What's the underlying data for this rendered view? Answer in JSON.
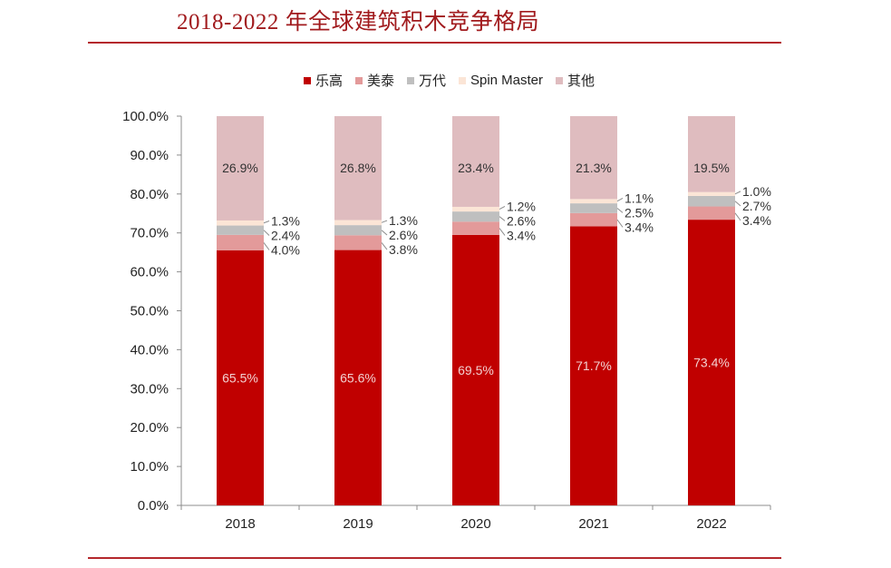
{
  "header": {
    "title": "2018-2022 年全球建筑积木竞争格局"
  },
  "chart_data": {
    "type": "bar",
    "stacked": true,
    "percent": true,
    "title": "2018-2022 年全球建筑积木竞争格局",
    "xlabel": "",
    "ylabel": "",
    "categories": [
      "2018",
      "2019",
      "2020",
      "2021",
      "2022"
    ],
    "ylim": [
      0,
      100
    ],
    "yticks": [
      0,
      10,
      20,
      30,
      40,
      50,
      60,
      70,
      80,
      90,
      100
    ],
    "ytick_labels": [
      "0.0%",
      "10.0%",
      "20.0%",
      "30.0%",
      "40.0%",
      "50.0%",
      "60.0%",
      "70.0%",
      "80.0%",
      "90.0%",
      "100.0%"
    ],
    "legend_position": "top-center",
    "grid": false,
    "series": [
      {
        "name": "乐高",
        "color": "#c00000",
        "label_color": "#f2d0d0",
        "values": [
          65.5,
          65.6,
          69.5,
          71.7,
          73.4
        ]
      },
      {
        "name": "美泰",
        "color": "#e39a9a",
        "label_color": "#333333",
        "values": [
          4.0,
          3.8,
          3.4,
          3.4,
          3.4
        ]
      },
      {
        "name": "万代",
        "color": "#bfbfbf",
        "label_color": "#333333",
        "values": [
          2.4,
          2.6,
          2.6,
          2.5,
          2.7
        ]
      },
      {
        "name": "Spin Master",
        "color": "#fbe5d6",
        "label_color": "#333333",
        "values": [
          1.3,
          1.3,
          1.2,
          1.1,
          1.0
        ]
      },
      {
        "name": "其他",
        "color": "#dfbcbf",
        "label_color": "#333333",
        "values": [
          26.9,
          26.8,
          23.4,
          21.3,
          19.5
        ]
      }
    ],
    "data_labels": [
      [
        "65.5%",
        "65.6%",
        "69.5%",
        "71.7%",
        "73.4%"
      ],
      [
        "4.0%",
        "3.8%",
        "3.4%",
        "3.4%",
        "3.4%"
      ],
      [
        "2.4%",
        "2.6%",
        "2.6%",
        "2.5%",
        "2.7%"
      ],
      [
        "1.3%",
        "1.3%",
        "1.2%",
        "1.1%",
        "1.0%"
      ],
      [
        "26.9%",
        "26.8%",
        "23.4%",
        "21.3%",
        "19.5%"
      ]
    ]
  }
}
